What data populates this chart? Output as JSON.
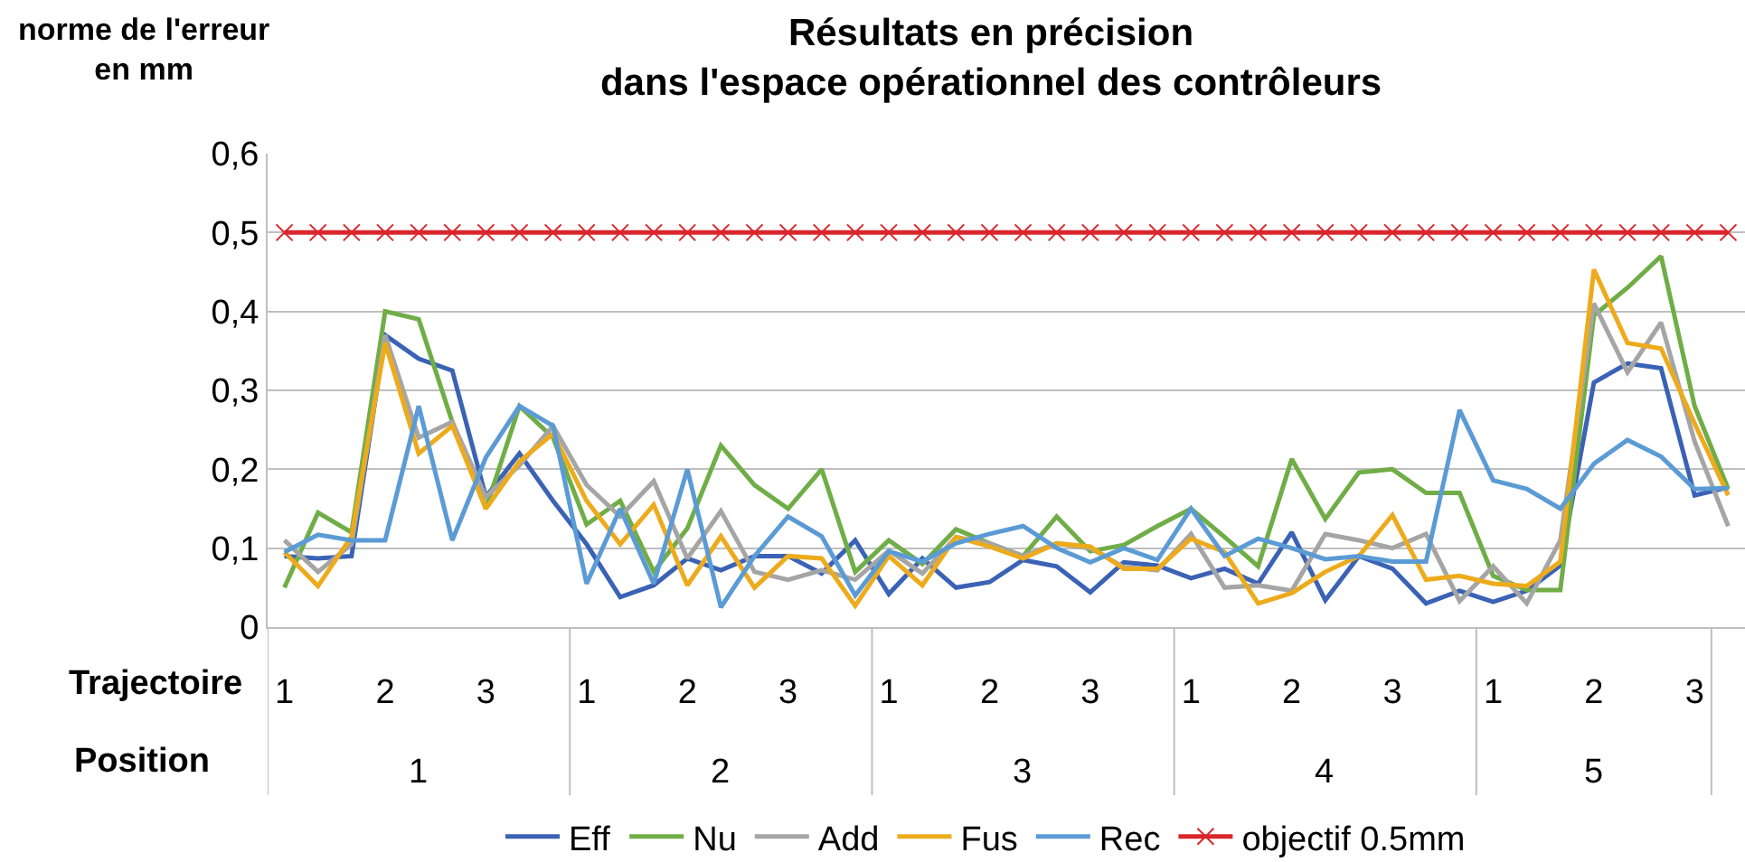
{
  "chart_data": {
    "type": "line",
    "title": "Résultats en précision\ndans l'espace opérationnel des contrôleurs",
    "ylabel": "norme de l'erreur\nen mm",
    "categories": [
      "1",
      null,
      null,
      "2",
      null,
      null,
      "3",
      null,
      null,
      "1",
      null,
      null,
      "2",
      null,
      null,
      "3",
      null,
      null,
      "1",
      null,
      null,
      "2",
      null,
      null,
      "3",
      null,
      null,
      "1",
      null,
      null,
      "2",
      null,
      null,
      "3",
      null,
      null,
      "1",
      null,
      null,
      "2",
      null,
      null,
      "3",
      null
    ],
    "series": [
      {
        "name": "Eff",
        "color": "#3a62b5",
        "values": [
          0.09,
          0.087,
          0.09,
          0.37,
          0.34,
          0.325,
          0.165,
          0.22,
          0.16,
          0.105,
          0.038,
          0.053,
          0.087,
          0.072,
          0.09,
          0.09,
          0.068,
          0.11,
          0.042,
          0.087,
          0.05,
          0.057,
          0.085,
          0.077,
          0.044,
          0.082,
          0.078,
          0.062,
          0.074,
          0.055,
          0.12,
          0.034,
          0.09,
          0.074,
          0.03,
          0.046,
          0.032,
          0.046,
          0.078,
          0.31,
          0.334,
          0.328,
          0.167,
          0.177
        ]
      },
      {
        "name": "Nu",
        "color": "#70ad47",
        "values": [
          0.05,
          0.145,
          0.12,
          0.4,
          0.39,
          0.26,
          0.15,
          0.28,
          0.24,
          0.13,
          0.16,
          0.07,
          0.125,
          0.23,
          0.18,
          0.15,
          0.2,
          0.07,
          0.11,
          0.08,
          0.124,
          0.106,
          0.09,
          0.14,
          0.096,
          0.104,
          0.128,
          0.15,
          0.114,
          0.077,
          0.213,
          0.137,
          0.196,
          0.2,
          0.17,
          0.17,
          0.065,
          0.047,
          0.047,
          0.395,
          0.43,
          0.47,
          0.28,
          0.175
        ]
      },
      {
        "name": "Add",
        "color": "#a5a5a5",
        "values": [
          0.11,
          0.07,
          0.105,
          0.37,
          0.24,
          0.26,
          0.165,
          0.205,
          0.255,
          0.18,
          0.14,
          0.185,
          0.087,
          0.147,
          0.07,
          0.06,
          0.072,
          0.06,
          0.097,
          0.068,
          0.114,
          0.106,
          0.09,
          0.106,
          0.1,
          0.076,
          0.072,
          0.118,
          0.05,
          0.053,
          0.046,
          0.118,
          0.11,
          0.1,
          0.118,
          0.033,
          0.077,
          0.03,
          0.11,
          0.41,
          0.323,
          0.386,
          0.235,
          0.128
        ]
      },
      {
        "name": "Fus",
        "color": "#edab1c",
        "values": [
          0.095,
          0.052,
          0.115,
          0.36,
          0.22,
          0.255,
          0.15,
          0.21,
          0.245,
          0.16,
          0.105,
          0.155,
          0.053,
          0.115,
          0.05,
          0.09,
          0.087,
          0.027,
          0.09,
          0.053,
          0.114,
          0.102,
          0.087,
          0.106,
          0.102,
          0.074,
          0.074,
          0.112,
          0.095,
          0.03,
          0.043,
          0.07,
          0.09,
          0.142,
          0.06,
          0.065,
          0.055,
          0.052,
          0.083,
          0.453,
          0.36,
          0.353,
          0.258,
          0.167
        ]
      },
      {
        "name": "Rec",
        "color": "#5b9bd5",
        "values": [
          0.095,
          0.117,
          0.11,
          0.11,
          0.28,
          0.11,
          0.215,
          0.28,
          0.255,
          0.055,
          0.15,
          0.055,
          0.2,
          0.025,
          0.09,
          0.14,
          0.115,
          0.04,
          0.096,
          0.083,
          0.106,
          0.118,
          0.128,
          0.1,
          0.082,
          0.1,
          0.085,
          0.15,
          0.09,
          0.112,
          0.1,
          0.086,
          0.09,
          0.083,
          0.083,
          0.275,
          0.186,
          0.175,
          0.15,
          0.207,
          0.237,
          0.216,
          0.175,
          0.176
        ]
      },
      {
        "name": "objectif 0.5mm",
        "color": "#d9262b",
        "marker": "cross",
        "values": [
          0.5,
          0.5,
          0.5,
          0.5,
          0.5,
          0.5,
          0.5,
          0.5,
          0.5,
          0.5,
          0.5,
          0.5,
          0.5,
          0.5,
          0.5,
          0.5,
          0.5,
          0.5,
          0.5,
          0.5,
          0.5,
          0.5,
          0.5,
          0.5,
          0.5,
          0.5,
          0.5,
          0.5,
          0.5,
          0.5,
          0.5,
          0.5,
          0.5,
          0.5,
          0.5,
          0.5,
          0.5,
          0.5,
          0.5,
          0.5,
          0.5,
          0.5,
          0.5,
          0.5
        ]
      }
    ],
    "annotations": [
      "Trajectoire",
      "Position",
      "1",
      "2",
      "3",
      "4",
      "5"
    ],
    "ylim": [
      0,
      0.6
    ],
    "yticks": [
      0,
      {
        "value": 0.1,
        "label": "0,1"
      },
      {
        "value": 0.2,
        "label": "0,2"
      },
      {
        "value": 0.3,
        "label": "0,3"
      },
      {
        "value": 0.4,
        "label": "0,4"
      },
      {
        "value": 0.5,
        "label": "0,5"
      },
      {
        "value": 0.6,
        "label": "0,6"
      }
    ],
    "grid": "y",
    "legend": "bottom",
    "marker": "none",
    "line_style": "solid"
  }
}
